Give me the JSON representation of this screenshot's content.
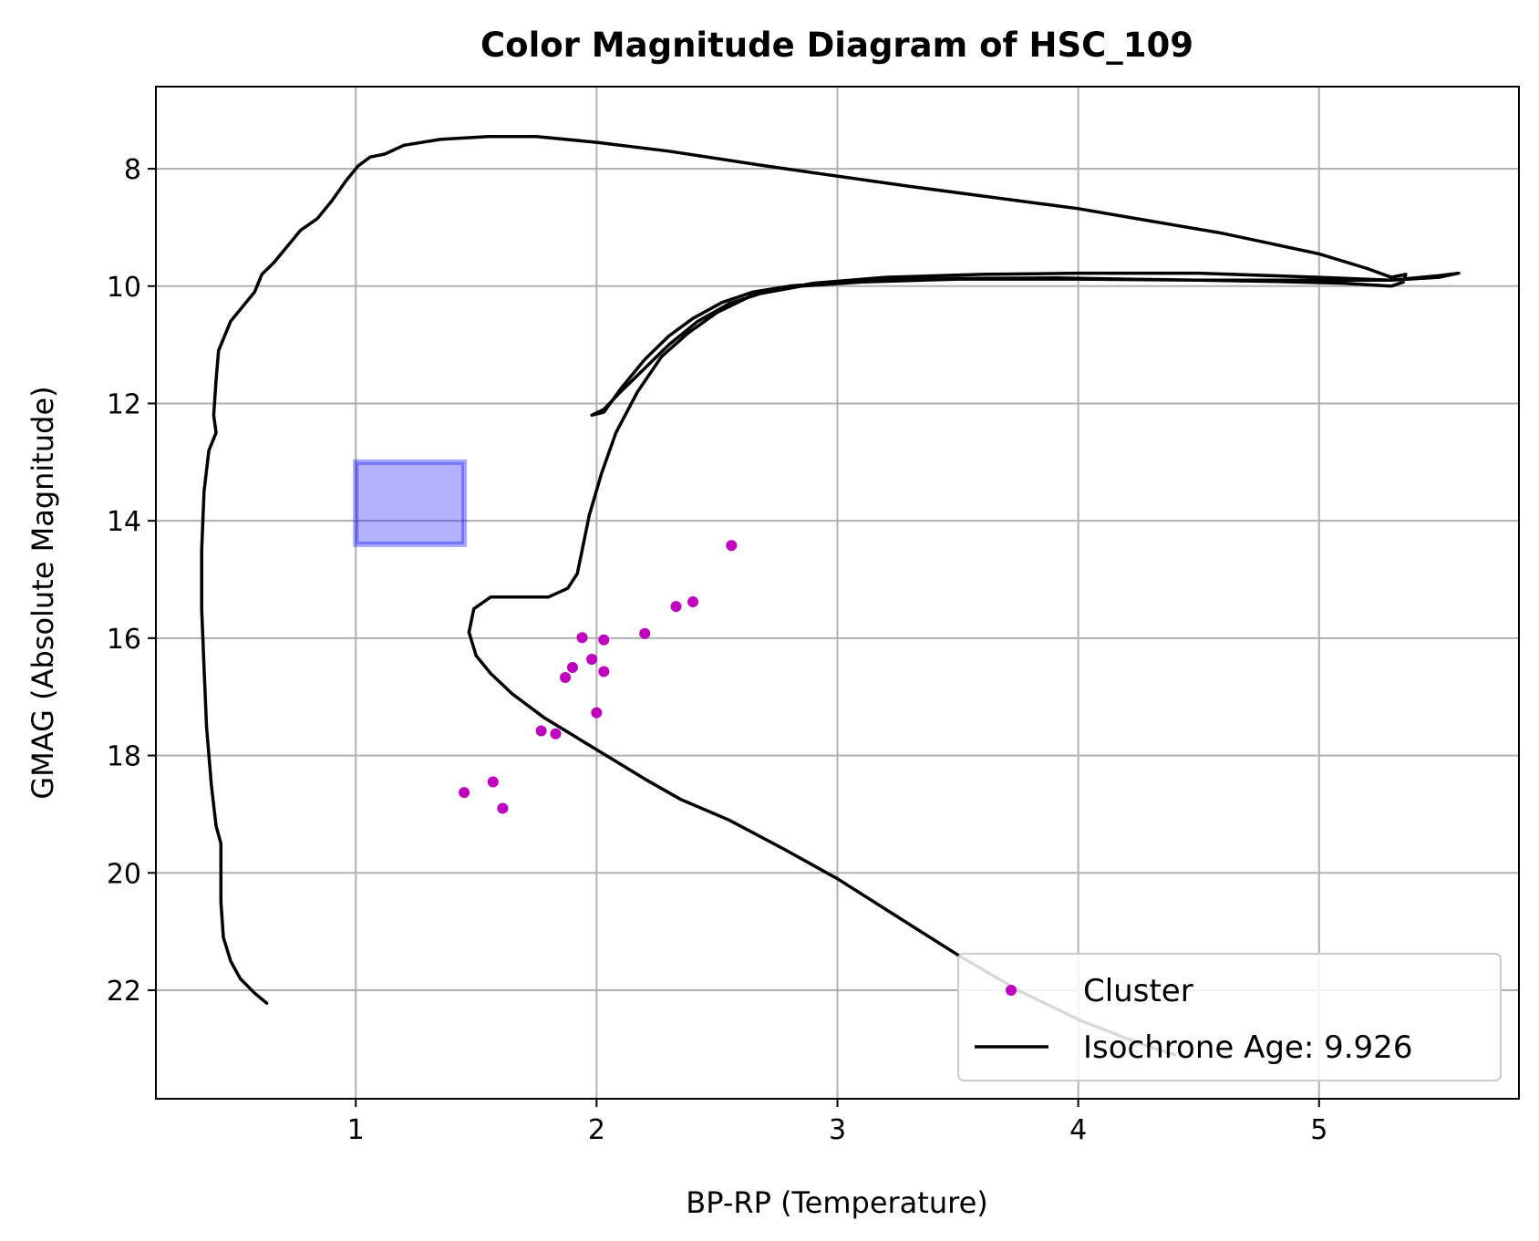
{
  "chart_data": {
    "type": "scatter",
    "title": "Color Magnitude Diagram of HSC_109",
    "xlabel": "BP-RP (Temperature)",
    "ylabel": "GMAG (Absolute Magnitude)",
    "xlim": [
      0.17,
      5.83
    ],
    "ylim": [
      23.85,
      6.6
    ],
    "y_inverted": true,
    "grid": true,
    "legend_placement": "lower-right",
    "x_ticks": [
      1,
      2,
      3,
      4,
      5
    ],
    "x_tick_labels": [
      "1",
      "2",
      "3",
      "4",
      "5"
    ],
    "y_ticks": [
      8,
      10,
      12,
      14,
      16,
      18,
      20,
      22
    ],
    "y_tick_labels": [
      "8",
      "10",
      "12",
      "14",
      "16",
      "18",
      "20",
      "22"
    ],
    "colors": {
      "cluster": "#bf00bf",
      "isochrone": "#000000",
      "region_fill": "#0000ff",
      "grid": "#b0b0b0"
    },
    "highlight_region": {
      "x": [
        1.0,
        1.45
      ],
      "y": [
        13.0,
        14.4
      ]
    },
    "series": [
      {
        "name": "Cluster",
        "kind": "scatter",
        "points": [
          [
            2.56,
            14.42
          ],
          [
            2.4,
            15.38
          ],
          [
            2.33,
            15.46
          ],
          [
            2.2,
            15.92
          ],
          [
            1.94,
            15.99
          ],
          [
            2.03,
            16.03
          ],
          [
            1.98,
            16.36
          ],
          [
            1.9,
            16.5
          ],
          [
            1.87,
            16.67
          ],
          [
            2.03,
            16.57
          ],
          [
            2.0,
            17.27
          ],
          [
            1.77,
            17.58
          ],
          [
            1.83,
            17.63
          ],
          [
            1.57,
            18.45
          ],
          [
            1.45,
            18.63
          ],
          [
            1.61,
            18.9
          ]
        ]
      },
      {
        "name": "Isochrone Age: 9.926",
        "kind": "line",
        "points": [
          [
            0.63,
            22.22
          ],
          [
            0.58,
            22.05
          ],
          [
            0.52,
            21.8
          ],
          [
            0.48,
            21.5
          ],
          [
            0.45,
            21.1
          ],
          [
            0.44,
            20.5
          ],
          [
            0.44,
            19.5
          ],
          [
            0.42,
            19.2
          ],
          [
            0.4,
            18.5
          ],
          [
            0.38,
            17.5
          ],
          [
            0.37,
            16.5
          ],
          [
            0.36,
            15.5
          ],
          [
            0.36,
            14.5
          ],
          [
            0.37,
            13.5
          ],
          [
            0.39,
            12.8
          ],
          [
            0.42,
            12.5
          ],
          [
            0.41,
            12.2
          ],
          [
            0.42,
            11.6
          ],
          [
            0.43,
            11.1
          ],
          [
            0.45,
            10.9
          ],
          [
            0.48,
            10.6
          ],
          [
            0.53,
            10.35
          ],
          [
            0.58,
            10.1
          ],
          [
            0.61,
            9.8
          ],
          [
            0.66,
            9.6
          ],
          [
            0.71,
            9.35
          ],
          [
            0.77,
            9.05
          ],
          [
            0.84,
            8.85
          ],
          [
            0.9,
            8.55
          ],
          [
            0.96,
            8.2
          ],
          [
            1.01,
            7.95
          ],
          [
            1.06,
            7.8
          ],
          [
            1.12,
            7.75
          ],
          [
            1.2,
            7.6
          ],
          [
            1.35,
            7.5
          ],
          [
            1.55,
            7.45
          ],
          [
            1.75,
            7.45
          ],
          [
            2.0,
            7.55
          ],
          [
            2.3,
            7.7
          ],
          [
            2.7,
            7.95
          ],
          [
            3.3,
            8.3
          ],
          [
            4.0,
            8.68
          ],
          [
            4.6,
            9.1
          ],
          [
            5.0,
            9.45
          ],
          [
            5.2,
            9.7
          ],
          [
            5.3,
            9.85
          ],
          [
            5.36,
            9.8
          ],
          [
            5.35,
            9.93
          ],
          [
            5.3,
            10.0
          ],
          [
            5.1,
            9.95
          ],
          [
            4.8,
            9.92
          ],
          [
            4.5,
            9.9
          ],
          [
            4.2,
            9.88
          ],
          [
            3.9,
            9.86
          ],
          [
            3.5,
            9.87
          ],
          [
            3.2,
            9.9
          ],
          [
            3.0,
            9.93
          ],
          [
            2.8,
            10.0
          ],
          [
            2.65,
            10.1
          ],
          [
            2.52,
            10.28
          ],
          [
            2.4,
            10.55
          ],
          [
            2.3,
            10.85
          ],
          [
            2.2,
            11.25
          ],
          [
            2.1,
            11.75
          ],
          [
            2.03,
            12.15
          ],
          [
            1.98,
            12.2
          ],
          [
            2.03,
            12.1
          ],
          [
            2.1,
            11.8
          ],
          [
            2.2,
            11.4
          ],
          [
            2.3,
            11.0
          ],
          [
            2.42,
            10.6
          ],
          [
            2.55,
            10.3
          ],
          [
            2.7,
            10.1
          ],
          [
            2.9,
            9.95
          ],
          [
            3.2,
            9.85
          ],
          [
            3.6,
            9.8
          ],
          [
            4.0,
            9.78
          ],
          [
            4.5,
            9.78
          ],
          [
            5.0,
            9.85
          ],
          [
            5.3,
            9.9
          ],
          [
            5.5,
            9.82
          ],
          [
            5.58,
            9.78
          ],
          [
            5.5,
            9.85
          ],
          [
            5.3,
            9.9
          ],
          [
            5.0,
            9.9
          ],
          [
            4.5,
            9.9
          ],
          [
            4.0,
            9.88
          ],
          [
            3.5,
            9.88
          ],
          [
            3.1,
            9.93
          ],
          [
            2.85,
            10.0
          ],
          [
            2.65,
            10.15
          ],
          [
            2.5,
            10.45
          ],
          [
            2.38,
            10.8
          ],
          [
            2.27,
            11.2
          ],
          [
            2.17,
            11.8
          ],
          [
            2.08,
            12.5
          ],
          [
            2.02,
            13.2
          ],
          [
            1.97,
            13.9
          ],
          [
            1.94,
            14.5
          ],
          [
            1.92,
            14.9
          ],
          [
            1.88,
            15.15
          ],
          [
            1.8,
            15.3
          ],
          [
            1.68,
            15.3
          ],
          [
            1.56,
            15.3
          ],
          [
            1.49,
            15.5
          ],
          [
            1.47,
            15.9
          ],
          [
            1.5,
            16.3
          ],
          [
            1.56,
            16.6
          ],
          [
            1.65,
            16.95
          ],
          [
            1.78,
            17.35
          ],
          [
            1.92,
            17.7
          ],
          [
            2.06,
            18.05
          ],
          [
            2.2,
            18.4
          ],
          [
            2.35,
            18.75
          ],
          [
            2.55,
            19.1
          ],
          [
            2.78,
            19.6
          ],
          [
            3.0,
            20.1
          ],
          [
            3.25,
            20.75
          ],
          [
            3.5,
            21.4
          ],
          [
            3.75,
            22.0
          ],
          [
            4.0,
            22.5
          ],
          [
            4.25,
            22.9
          ],
          [
            4.4,
            23.1
          ]
        ]
      }
    ]
  }
}
